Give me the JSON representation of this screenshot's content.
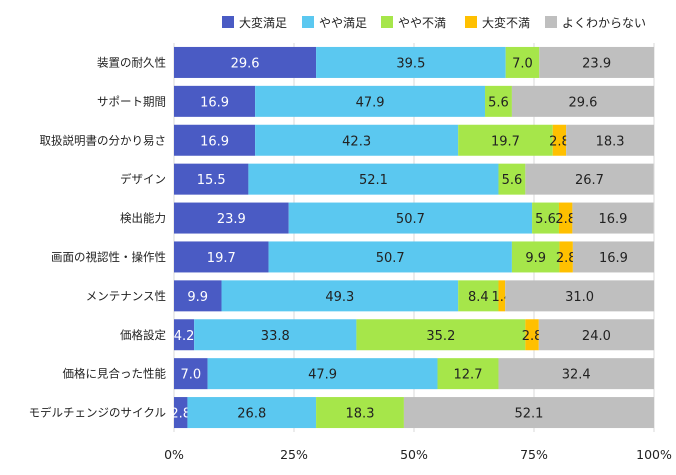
{
  "chart_data": {
    "type": "bar",
    "orientation": "horizontal",
    "stacked": "percent",
    "categories": [
      "装置の耐久性",
      "サポート期間",
      "取扱説明書の分かり易さ",
      "デザイン",
      "検出能力",
      "画面の視認性・操作性",
      "メンテナンス性",
      "価格設定",
      "価格に見合った性能",
      "モデルチェンジのサイクル"
    ],
    "series": [
      {
        "name": "大変満足",
        "color": "#4a5bc4",
        "values": [
          29.6,
          16.9,
          16.9,
          15.5,
          23.9,
          19.7,
          9.9,
          4.2,
          7.0,
          2.8
        ]
      },
      {
        "name": "やや満足",
        "color": "#5bc8f0",
        "values": [
          39.5,
          47.9,
          42.3,
          52.1,
          50.7,
          50.7,
          49.3,
          33.8,
          47.9,
          26.8
        ]
      },
      {
        "name": "やや不満",
        "color": "#a6e64a",
        "values": [
          7.0,
          5.6,
          19.7,
          5.6,
          5.6,
          9.9,
          8.4,
          35.2,
          12.7,
          18.3
        ]
      },
      {
        "name": "大変不満",
        "color": "#ffc000",
        "values": [
          0.0,
          0.0,
          2.8,
          0.0,
          2.8,
          2.8,
          1.4,
          2.8,
          0.0,
          0.0
        ]
      },
      {
        "name": "よくわからない",
        "color": "#bfbfbf",
        "values": [
          23.9,
          29.6,
          18.3,
          26.7,
          16.9,
          16.9,
          31.0,
          24.0,
          32.4,
          52.1
        ]
      }
    ],
    "xaxis_ticks": [
      "0%",
      "25%",
      "50%",
      "75%",
      "100%"
    ],
    "xlim": [
      0,
      100
    ],
    "legend_position": "top",
    "grid": "vertical"
  }
}
